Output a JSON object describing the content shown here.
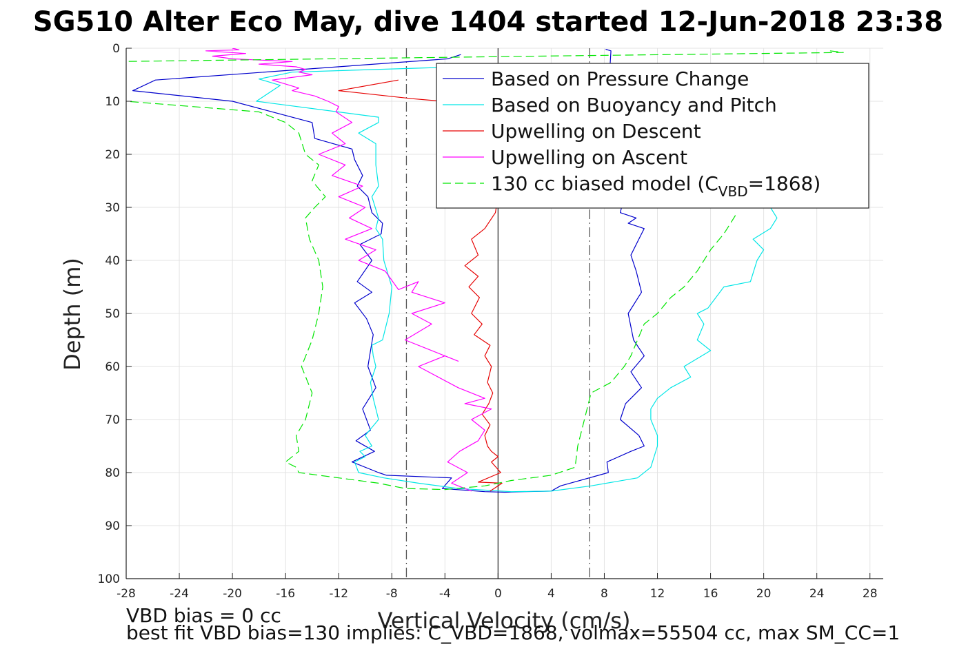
{
  "chart_data": {
    "type": "line",
    "title": "SG510 Alter Eco May, dive 1404 started 12-Jun-2018 23:38",
    "xlabel": "Vertical Velocity (cm/s)",
    "ylabel": "Depth (m)",
    "xlim": [
      -28,
      29
    ],
    "ylim": [
      0,
      100
    ],
    "y_reversed": true,
    "grid": true,
    "xticks": [
      -28,
      -24,
      -20,
      -16,
      -12,
      -8,
      -4,
      0,
      4,
      8,
      12,
      16,
      20,
      24,
      28
    ],
    "yticks": [
      0,
      10,
      20,
      30,
      40,
      50,
      60,
      70,
      80,
      90,
      100
    ],
    "legend_position": "top-right",
    "reference_lines": [
      {
        "x": -6.9,
        "style": "dash-dot",
        "color": "#555555"
      },
      {
        "x": 6.9,
        "style": "dash-dot",
        "color": "#555555"
      },
      {
        "x": 0,
        "style": "solid",
        "color": "#333333"
      }
    ],
    "series": [
      {
        "name": "Based on Pressure Change",
        "color": "#0000cc",
        "style": "solid",
        "x": [
          -2.8,
          -3.8,
          -25.8,
          -27.5,
          -20.0,
          -14.0,
          -13.8,
          -11.0,
          -10.8,
          -10.2,
          -10.6,
          -9.8,
          -9.5,
          -8.7,
          -8.8,
          -10.4,
          -9.5,
          -10.6,
          -9.5,
          -10.8,
          -9.9,
          -9.4,
          -9.6,
          -9.8,
          -9.2,
          -10.2,
          -9.6,
          -10.7,
          -9.3,
          -11.0,
          -9.0,
          -8.4,
          -3.5,
          -4.2,
          -1.0,
          0.5,
          2.0,
          4.0,
          4.7,
          8.3,
          8.2,
          10.0,
          11.0,
          10.6,
          9.2,
          9.6,
          10.8,
          10.0,
          11.0,
          10.2,
          9.8,
          10.8,
          10.4,
          10.0,
          10.8,
          11.0,
          9.8,
          10.4,
          9.2,
          9.4,
          8.3,
          7.9,
          8.0,
          8.5,
          8.1
        ],
        "y": [
          1.2,
          2.0,
          6.0,
          8.0,
          10.0,
          14.0,
          17.0,
          19.0,
          21.0,
          24.0,
          26.0,
          28.0,
          31.0,
          33.0,
          35.0,
          37.0,
          40.0,
          44.0,
          46.0,
          48.0,
          51.0,
          54.0,
          57.0,
          60.0,
          64.0,
          68.0,
          72.0,
          74.0,
          76.0,
          78.0,
          80.0,
          80.5,
          81.0,
          83.0,
          83.6,
          83.7,
          83.6,
          83.5,
          82.5,
          80.0,
          78.0,
          76.0,
          75.0,
          73.0,
          70.0,
          67.0,
          64.0,
          61.0,
          58.0,
          55.0,
          50.0,
          46.0,
          42.0,
          39.0,
          35.0,
          34.0,
          33.0,
          32.0,
          31.0,
          29.0,
          27.0,
          25.0,
          21.0,
          0.5,
          0.2
        ]
      },
      {
        "name": "Based on Buoyancy and Pitch",
        "color": "#00e6e6",
        "style": "solid",
        "x": [
          3.5,
          -15.5,
          -18.0,
          -16.4,
          -18.2,
          -9.0,
          -9.0,
          -10.5,
          -9.2,
          -9.2,
          -9.0,
          -9.5,
          -9.0,
          -9.2,
          -8.7,
          -8.6,
          -8.0,
          -8.2,
          -8.7,
          -9.5,
          -9.4,
          -9.2,
          -9.6,
          -9.4,
          -9.0,
          -10.0,
          -9.5,
          -10.4,
          -10.0,
          -10.8,
          -10.5,
          -8.6,
          -6.0,
          -3.0,
          1.0,
          4.0,
          7.0,
          10.5,
          11.5,
          12.0,
          12.0,
          11.5,
          11.5,
          12.0,
          13.0,
          14.5,
          14.0,
          16.0,
          15.0,
          15.5,
          15.0,
          15.8,
          17.0,
          19.0,
          19.5,
          20.0,
          19.2,
          20.5,
          21.0,
          20.5
        ],
        "y": [
          3.0,
          4.5,
          5.8,
          7.0,
          10.0,
          13.0,
          14.0,
          16.0,
          18.0,
          22.0,
          26.0,
          28.0,
          32.0,
          34.0,
          36.0,
          40.0,
          45.0,
          50.0,
          55.0,
          56.0,
          58.0,
          60.0,
          63.0,
          66.0,
          70.0,
          73.0,
          75.0,
          76.0,
          77.0,
          78.0,
          80.0,
          81.0,
          82.0,
          83.0,
          83.6,
          83.5,
          82.5,
          81.0,
          79.0,
          75.0,
          73.0,
          70.0,
          68.0,
          66.0,
          64.0,
          62.0,
          60.0,
          57.0,
          55.0,
          52.0,
          50.0,
          49.0,
          45.0,
          44.0,
          40.0,
          38.0,
          36.0,
          34.0,
          32.0,
          30.0
        ]
      },
      {
        "name": "Upwelling on Descent",
        "color": "#e60000",
        "style": "solid",
        "x": [
          -7.5,
          -12.0,
          -6.5,
          0.5,
          0.2,
          -0.2,
          -1.0,
          -2.0,
          -1.5,
          -2.5,
          -1.5,
          -2.2,
          -1.4,
          -2.0,
          -1.2,
          -1.8,
          -0.6,
          -1.0,
          -0.5,
          -0.8,
          -0.4,
          -0.7,
          -1.2,
          -0.6,
          -1.0,
          -0.8,
          -0.5,
          0.0,
          -0.5,
          0.2,
          -1.5,
          0.3,
          -0.3,
          -0.6
        ],
        "y": [
          6.0,
          8.0,
          9.5,
          11.0,
          25.0,
          31.0,
          34.0,
          36.0,
          39.0,
          41.0,
          43.0,
          45.0,
          47.0,
          50.0,
          52.0,
          54.0,
          56.0,
          58.0,
          60.0,
          63.0,
          65.0,
          67.0,
          69.0,
          71.0,
          73.0,
          75.0,
          76.0,
          77.0,
          78.0,
          80.0,
          81.8,
          82.0,
          83.0,
          83.5
        ]
      },
      {
        "name": "Upwelling on Ascent",
        "color": "#ff00ff",
        "style": "solid",
        "x": [
          -2.0,
          -3.5,
          -2.3,
          -3.8,
          -2.9,
          -1.5,
          -1.0,
          -2.0,
          -0.5,
          -2.5,
          -1.0,
          -3.0,
          -6.0,
          -4.0,
          -3.0,
          -7.0,
          -5.0,
          -6.5,
          -4.0,
          -6.5,
          -6.0,
          -7.5,
          -8.5,
          -10.5,
          -9.2,
          -11.5,
          -9.5,
          -11.2,
          -10.0,
          -12.0,
          -10.2,
          -12.5,
          -11.5,
          -13.5,
          -11.5,
          -12.5,
          -11.0,
          -12.2,
          -12.0,
          -12.8,
          -13.8,
          -15.5,
          -15.0,
          -17.0,
          -14.0,
          -15.0,
          -14.5,
          -15.2,
          -18.0,
          -15.5,
          -20.0,
          -21.5,
          -19.0,
          -22.0,
          -19.5,
          -20.0
        ],
        "y": [
          83.5,
          82.0,
          80.0,
          78.0,
          76.0,
          74.0,
          72.0,
          70.0,
          68.0,
          67.0,
          66.0,
          64.0,
          60.0,
          58.0,
          59.0,
          55.0,
          52.0,
          50.0,
          48.0,
          46.0,
          44.0,
          45.5,
          42.0,
          40.0,
          38.0,
          36.0,
          34.0,
          32.0,
          30.0,
          28.0,
          26.0,
          24.0,
          22.0,
          20.0,
          18.0,
          16.0,
          14.0,
          12.0,
          11.0,
          10.0,
          9.0,
          8.0,
          7.5,
          6.0,
          5.0,
          4.5,
          4.0,
          3.5,
          3.0,
          2.5,
          2.0,
          1.5,
          1.0,
          0.5,
          0.3,
          0.0
        ]
      },
      {
        "name": "130 cc biased model",
        "color": "#00e600",
        "style": "dashed",
        "x": [
          25.0,
          26.0,
          3.0,
          -28.5,
          -28.0,
          -18.0,
          -16.0,
          -15.0,
          -14.5,
          -13.5,
          -14.0,
          -13.0,
          -13.8,
          -14.5,
          -14.2,
          -13.5,
          -13.2,
          -13.5,
          -14.0,
          -14.8,
          -14.0,
          -14.5,
          -15.2,
          -15.0,
          -16.0,
          -15.2,
          -15.0,
          -12.0,
          -9.0,
          -7.0,
          -4.0,
          -1.0,
          1.0,
          4.0,
          5.8,
          6.0,
          6.5,
          6.8,
          7.0,
          8.5,
          9.5,
          10.0,
          10.5,
          11.0,
          12.0,
          13.0,
          14.0,
          15.0,
          16.0,
          17.0,
          17.5,
          18.0
        ],
        "y": [
          0.5,
          0.8,
          1.5,
          2.5,
          10.0,
          12.0,
          14.0,
          16.0,
          20.0,
          22.0,
          25.0,
          28.0,
          30.0,
          32.0,
          36.0,
          40.0,
          45.0,
          50.0,
          55.0,
          60.0,
          65.0,
          70.0,
          73.0,
          76.0,
          78.0,
          79.0,
          80.0,
          81.0,
          82.0,
          83.0,
          83.2,
          82.5,
          81.5,
          80.5,
          79.0,
          75.0,
          70.0,
          67.0,
          65.0,
          63.0,
          60.0,
          58.0,
          55.0,
          52.0,
          50.0,
          47.0,
          45.0,
          42.0,
          38.0,
          35.0,
          33.0,
          31.0
        ]
      }
    ]
  },
  "legend": {
    "entries": [
      {
        "label": "Based on Pressure Change"
      },
      {
        "label": "Based on Buoyancy and Pitch"
      },
      {
        "label": "Upwelling on Descent"
      },
      {
        "label": "Upwelling on Ascent"
      },
      {
        "label_prefix": "130 cc biased model (C",
        "label_sub": "VBD",
        "label_suffix": "=1868)"
      }
    ]
  },
  "notes": {
    "line1": "VBD bias = 0 cc",
    "line2": "best fit VBD bias=130 implies: C_VBD=1868, volmax=55504 cc, max SM_CC=1"
  }
}
